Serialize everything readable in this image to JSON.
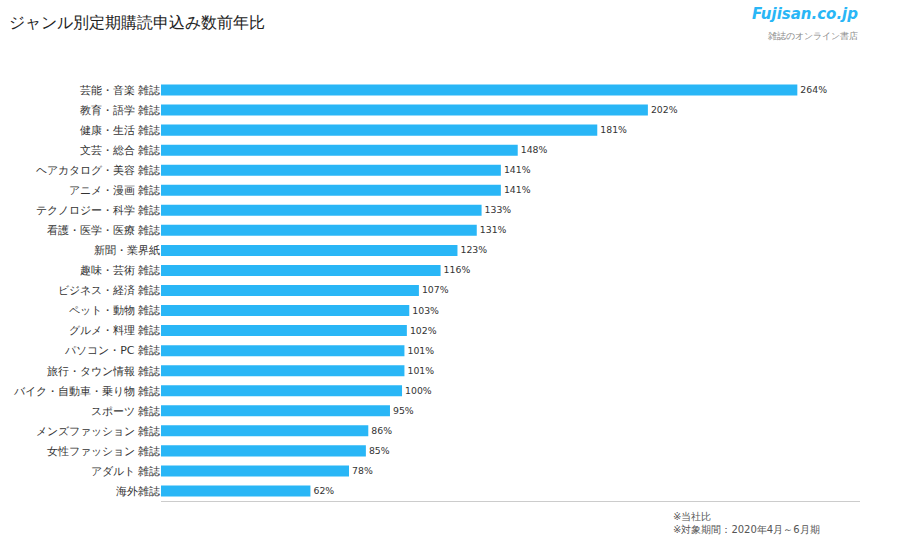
{
  "chart_data": {
    "type": "bar",
    "orientation": "horizontal",
    "title": "ジャンル別定期購読申込み数前年比",
    "categories": [
      "海外雑誌",
      "アダルト 雑誌",
      "女性ファッション 雑誌",
      "メンズファッション 雑誌",
      "スポーツ 雑誌",
      "バイク・自動車・乗り物 雑誌",
      "旅行・タウン情報 雑誌",
      "パソコン・PC 雑誌",
      "グルメ・料理 雑誌",
      "ペット・動物 雑誌",
      "ビジネス・経済 雑誌",
      "趣味・芸術 雑誌",
      "新聞・業界紙",
      "看護・医学・医療 雑誌",
      "テクノロジー・科学 雑誌",
      "アニメ・漫画 雑誌",
      "ヘアカタログ・美容 雑誌",
      "文芸・総合 雑誌",
      "健康・生活 雑誌",
      "教育・語学 雑誌",
      "芸能・音楽 雑誌"
    ],
    "values": [
      62,
      78,
      85,
      86,
      95,
      100,
      101,
      101,
      102,
      103,
      107,
      116,
      123,
      131,
      133,
      141,
      141,
      148,
      181,
      202,
      264
    ],
    "value_labels": [
      "62%",
      "78%",
      "85%",
      "86%",
      "95%",
      "100%",
      "101%",
      "101%",
      "102%",
      "103%",
      "107%",
      "116%",
      "123%",
      "131%",
      "133%",
      "141%",
      "141%",
      "148%",
      "181%",
      "202%",
      "264%"
    ],
    "data_labels": true,
    "color": "#29B6F6",
    "xlim": [
      0,
      290
    ],
    "tick_labels": "y",
    "grid": false,
    "annotations": [
      "※当社比\n※対象期間：2020年4月～6月期",
      "Fujisan.co.jp",
      "雑誌のオンライン書店"
    ]
  }
}
